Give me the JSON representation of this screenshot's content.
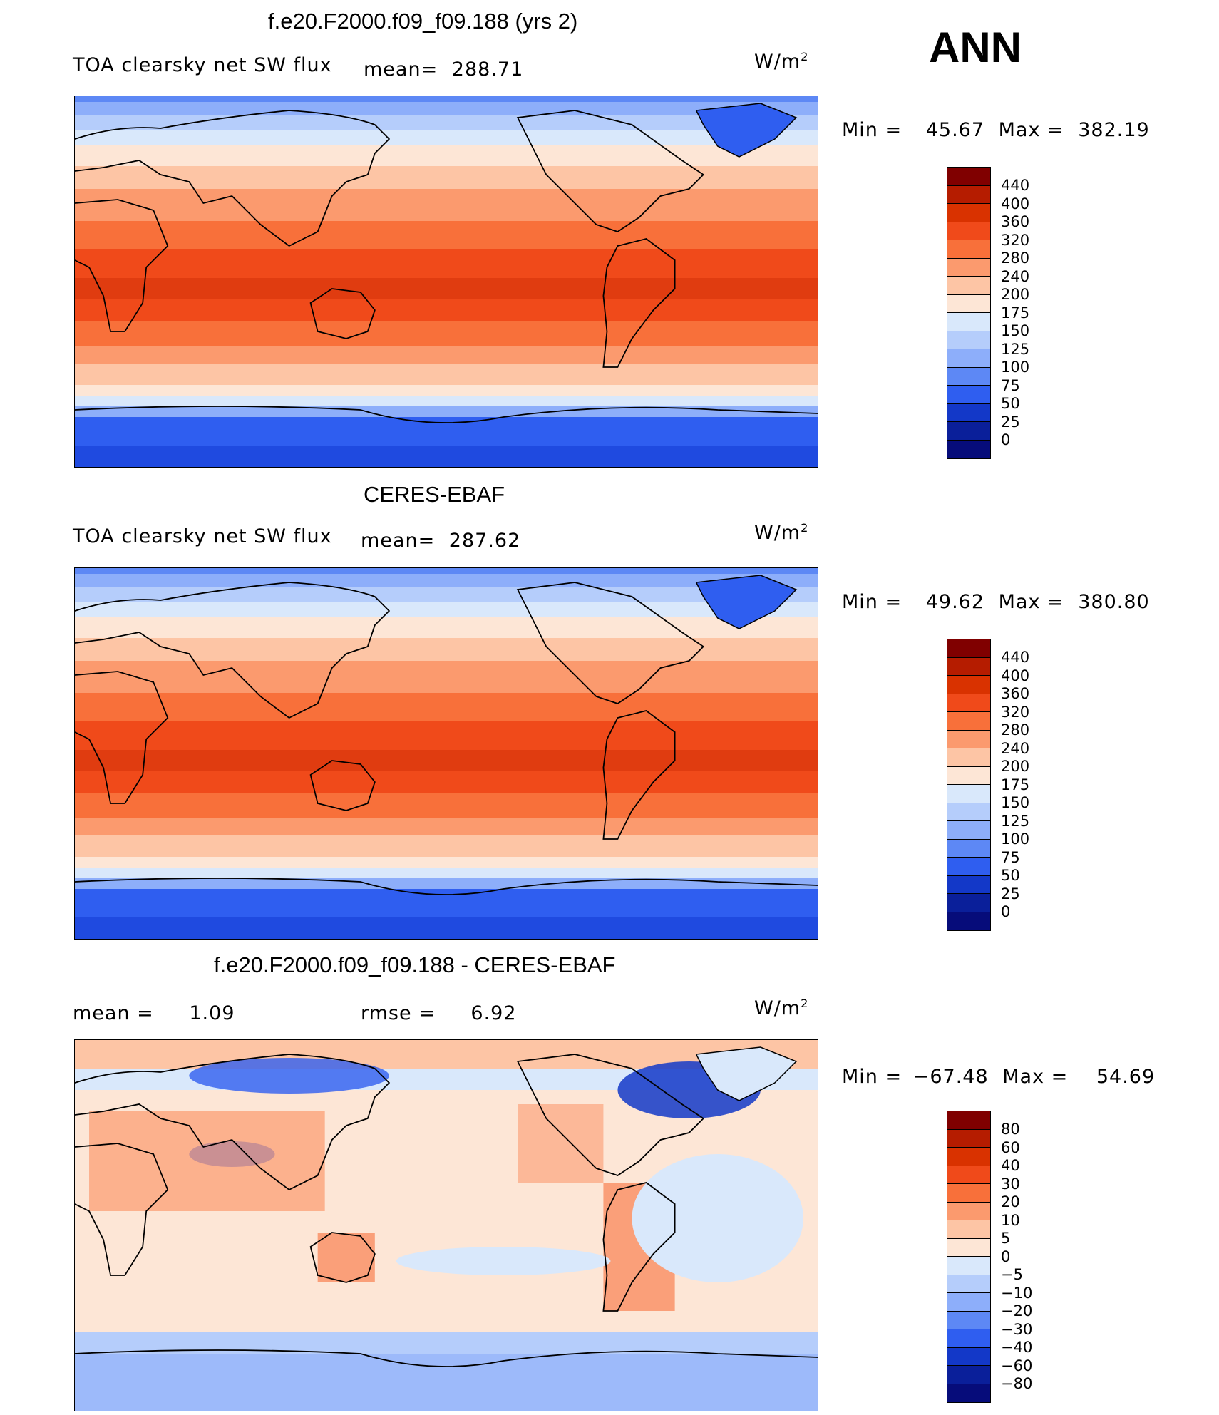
{
  "season": "ANN",
  "panels": [
    {
      "title": "f.e20.F2000.f09_f09.188 (yrs 2)",
      "left_label": "TOA clearsky net SW flux",
      "stat_label": "mean=",
      "stat_value": "288.71",
      "units": "W/m",
      "units_sup": "2",
      "minmax_min_label": "Min  =",
      "min_value": "45.67",
      "minmax_max_label": "Max  =",
      "max_value": "382.19",
      "colorbar_labels": [
        "440",
        "400",
        "360",
        "320",
        "280",
        "240",
        "200",
        "175",
        "150",
        "125",
        "100",
        "75",
        "50",
        "25",
        "0"
      ]
    },
    {
      "title": "CERES-EBAF",
      "left_label": "TOA clearsky net SW flux",
      "stat_label": "mean=",
      "stat_value": "287.62",
      "units": "W/m",
      "units_sup": "2",
      "minmax_min_label": "Min  =",
      "min_value": "49.62",
      "minmax_max_label": "Max  =",
      "max_value": "380.80",
      "colorbar_labels": [
        "440",
        "400",
        "360",
        "320",
        "280",
        "240",
        "200",
        "175",
        "150",
        "125",
        "100",
        "75",
        "50",
        "25",
        "0"
      ]
    },
    {
      "title": "f.e20.F2000.f09_f09.188 - CERES-EBAF",
      "mean_label": "mean  =",
      "mean_value": "1.09",
      "rmse_label": "rmse  =",
      "rmse_value": "6.92",
      "units": "W/m",
      "units_sup": "2",
      "minmax_min_label": "Min  =",
      "min_value": "−67.48",
      "minmax_max_label": "Max  =",
      "max_value": "54.69",
      "colorbar_labels": [
        "80",
        "60",
        "40",
        "30",
        "20",
        "10",
        "5",
        "0",
        "−5",
        "−10",
        "−20",
        "−30",
        "−40",
        "−60",
        "−80"
      ]
    }
  ],
  "colors": {
    "abs_scale": [
      "#800000",
      "#b51c00",
      "#d93200",
      "#f04a1a",
      "#f8703a",
      "#fb9a6e",
      "#fdc5a5",
      "#fde6d6",
      "#d9e8fb",
      "#b5cdfb",
      "#8daefa",
      "#5d88f5",
      "#2f5ef0",
      "#1338c8",
      "#0a1f9a",
      "#060c7a"
    ],
    "diff_scale": [
      "#800000",
      "#b51c00",
      "#d93200",
      "#f04a1a",
      "#f8703a",
      "#fb9a6e",
      "#fdc5a5",
      "#fde6d6",
      "#d9e8fb",
      "#b5cdfb",
      "#8daefa",
      "#5d88f5",
      "#2f5ef0",
      "#1338c8",
      "#0a1f9a",
      "#060c7a"
    ],
    "coast": "#000000"
  }
}
